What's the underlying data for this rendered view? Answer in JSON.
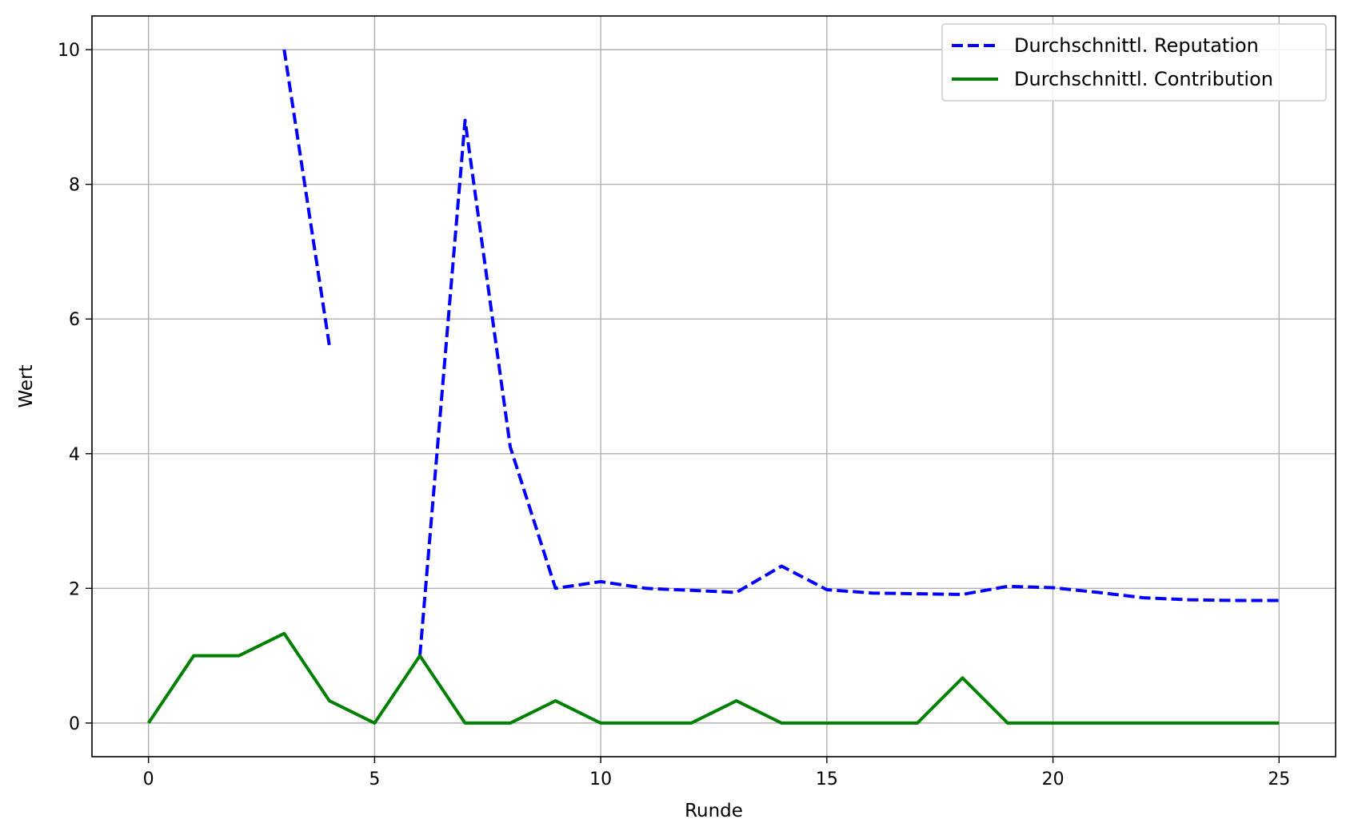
{
  "chart_data": {
    "type": "line",
    "xlabel": "Runde",
    "ylabel": "Wert",
    "xlim": [
      -1.25,
      26.25
    ],
    "ylim": [
      -0.5,
      10.5
    ],
    "x_ticks": [
      0,
      5,
      10,
      15,
      20,
      25
    ],
    "y_ticks": [
      0,
      2,
      4,
      6,
      8,
      10
    ],
    "grid": true,
    "legend": "top-right",
    "series": [
      {
        "name": "Durchschnittl. Reputation",
        "color": "#0000ff",
        "style": "dashed",
        "x": [
          0,
          1,
          2,
          3,
          4,
          5,
          6,
          7,
          8,
          9,
          10,
          11,
          12,
          13,
          14,
          15,
          16,
          17,
          18,
          19,
          20,
          21,
          22,
          23,
          24,
          25
        ],
        "y": [
          null,
          null,
          null,
          10.0,
          5.6,
          null,
          1.0,
          8.95,
          4.1,
          2.0,
          2.1,
          2.0,
          1.97,
          1.94,
          2.33,
          1.98,
          1.93,
          1.92,
          1.91,
          2.03,
          2.01,
          1.94,
          1.86,
          1.83,
          1.82,
          1.82
        ]
      },
      {
        "name": "Durchschnittl. Contribution",
        "color": "#008000",
        "style": "solid",
        "x": [
          0,
          1,
          2,
          3,
          4,
          5,
          6,
          7,
          8,
          9,
          10,
          11,
          12,
          13,
          14,
          15,
          16,
          17,
          18,
          19,
          20,
          21,
          22,
          23,
          24,
          25
        ],
        "y": [
          0,
          1.0,
          1.0,
          1.33,
          0.33,
          0,
          1.0,
          0,
          0,
          0.33,
          0,
          0,
          0,
          0.33,
          0,
          0,
          0,
          0,
          0.67,
          0,
          0,
          0,
          0,
          0,
          0,
          0
        ]
      }
    ]
  }
}
